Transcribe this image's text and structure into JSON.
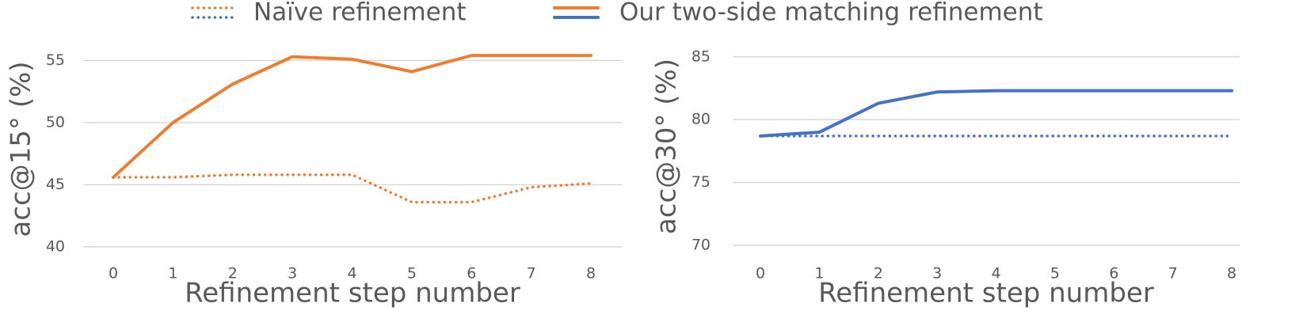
{
  "chart_data": [
    {
      "type": "line",
      "x_label": "Refinement step number",
      "y_label": "acc@15° (%)",
      "x": [
        0,
        1,
        2,
        3,
        4,
        5,
        6,
        7,
        8
      ],
      "xlim": [
        0,
        8
      ],
      "xticks": [
        0,
        1,
        2,
        3,
        4,
        5,
        6,
        7,
        8
      ],
      "ylim": [
        40,
        57
      ],
      "yticks": [
        40,
        45,
        50,
        55
      ],
      "grid": true,
      "series": [
        {
          "name": "Naïve refinement",
          "color": "#ed7d31",
          "style": "dotted",
          "values": [
            45.6,
            45.6,
            45.8,
            45.8,
            45.8,
            43.6,
            43.6,
            44.8,
            45.1
          ]
        },
        {
          "name": "Our two-side matching refinement",
          "color": "#ed7d31",
          "style": "solid",
          "values": [
            45.6,
            50.0,
            53.1,
            55.3,
            55.1,
            54.1,
            55.4,
            55.4,
            55.4
          ]
        }
      ]
    },
    {
      "type": "line",
      "x_label": "Refinement step number",
      "y_label": "acc@30° (%)",
      "x": [
        0,
        1,
        2,
        3,
        4,
        5,
        6,
        7,
        8
      ],
      "xlim": [
        0,
        8
      ],
      "xticks": [
        0,
        1,
        2,
        3,
        4,
        5,
        6,
        7,
        8
      ],
      "ylim": [
        70,
        87
      ],
      "yticks": [
        70,
        75,
        80,
        85
      ],
      "grid": true,
      "series": [
        {
          "name": "Naïve refinement",
          "color": "#4472c4",
          "style": "dotted",
          "values": [
            78.7,
            78.7,
            78.7,
            78.7,
            78.7,
            78.7,
            78.7,
            78.7,
            78.7
          ]
        },
        {
          "name": "Our two-side matching refinement",
          "color": "#4472c4",
          "style": "solid",
          "values": [
            78.7,
            79.0,
            81.3,
            82.2,
            82.3,
            82.3,
            82.3,
            82.3,
            82.3
          ]
        }
      ]
    }
  ]
}
